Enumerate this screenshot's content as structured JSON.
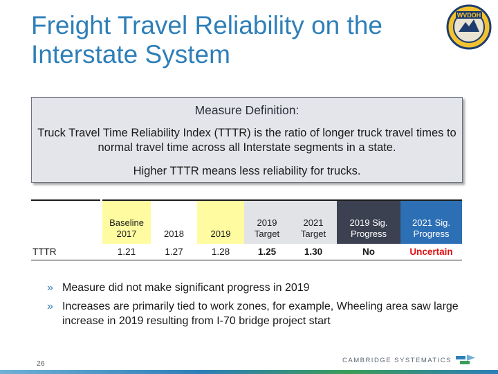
{
  "slide": {
    "title": "Freight Travel Reliability on the Interstate System",
    "page_number": "26"
  },
  "logo": {
    "text": "WVDOH"
  },
  "definition": {
    "heading": "Measure Definition:",
    "body": "Truck Travel Time Reliability Index (TTTR) is the ratio of longer truck travel times to normal travel time across all Interstate segments in a state.",
    "note": "Higher TTTR means less reliability for trucks."
  },
  "table": {
    "headers": [
      "Baseline 2017",
      "2018",
      "2019",
      "2019 Target",
      "2021 Target",
      "2019 Sig. Progress",
      "2021 Sig. Progress"
    ],
    "row_label": "TTTR",
    "values": [
      "1.21",
      "1.27",
      "1.28",
      "1.25",
      "1.30",
      "No",
      "Uncertain"
    ]
  },
  "bullets": [
    "Measure did not make significant progress in 2019",
    "Increases are primarily tied to work zones, for example, Wheeling area saw large increase in 2019 resulting from I-70 bridge project start"
  ],
  "bullet_glyph": "»",
  "footer": {
    "brand": "CAMBRIDGE SYSTEMATICS"
  },
  "colors": {
    "title": "#2e7fb8",
    "highlight_yellow": "#fffba0",
    "dark_header": "#3b4150",
    "blue_header": "#2d6fb5",
    "status_red": "#e01010"
  }
}
